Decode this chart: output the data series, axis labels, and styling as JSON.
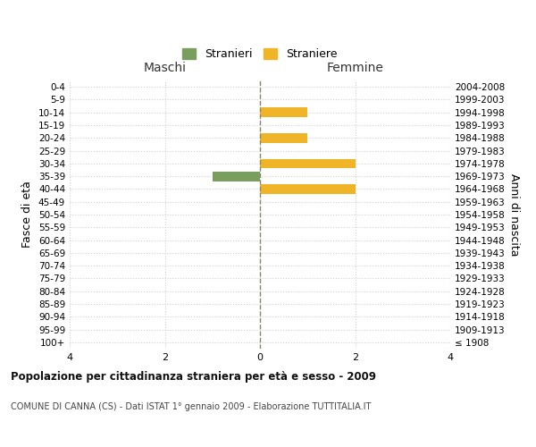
{
  "age_groups": [
    "100+",
    "95-99",
    "90-94",
    "85-89",
    "80-84",
    "75-79",
    "70-74",
    "65-69",
    "60-64",
    "55-59",
    "50-54",
    "45-49",
    "40-44",
    "35-39",
    "30-34",
    "25-29",
    "20-24",
    "15-19",
    "10-14",
    "5-9",
    "0-4"
  ],
  "birth_years": [
    "≤ 1908",
    "1909-1913",
    "1914-1918",
    "1919-1923",
    "1924-1928",
    "1929-1933",
    "1934-1938",
    "1939-1943",
    "1944-1948",
    "1949-1953",
    "1954-1958",
    "1959-1963",
    "1964-1968",
    "1969-1973",
    "1974-1978",
    "1979-1983",
    "1984-1988",
    "1989-1993",
    "1994-1998",
    "1999-2003",
    "2004-2008"
  ],
  "males": [
    0,
    0,
    0,
    0,
    0,
    0,
    0,
    0,
    0,
    0,
    0,
    0,
    0,
    1,
    0,
    0,
    0,
    0,
    0,
    0,
    0
  ],
  "females": [
    0,
    0,
    0,
    0,
    0,
    0,
    0,
    0,
    0,
    0,
    0,
    0,
    2,
    0,
    2,
    0,
    1,
    0,
    1,
    0,
    0
  ],
  "male_color": "#7a9e5e",
  "female_color": "#f0b429",
  "xlim": 4,
  "title": "Popolazione per cittadinanza straniera per età e sesso - 2009",
  "subtitle": "COMUNE DI CANNA (CS) - Dati ISTAT 1° gennaio 2009 - Elaborazione TUTTITALIA.IT",
  "ylabel_left": "Fasce di età",
  "ylabel_right": "Anni di nascita",
  "legend_male": "Stranieri",
  "legend_female": "Straniere",
  "label_maschi": "Maschi",
  "label_femmine": "Femmine",
  "bg_color": "#ffffff",
  "grid_color": "#d0d0d0",
  "bar_height": 0.75
}
